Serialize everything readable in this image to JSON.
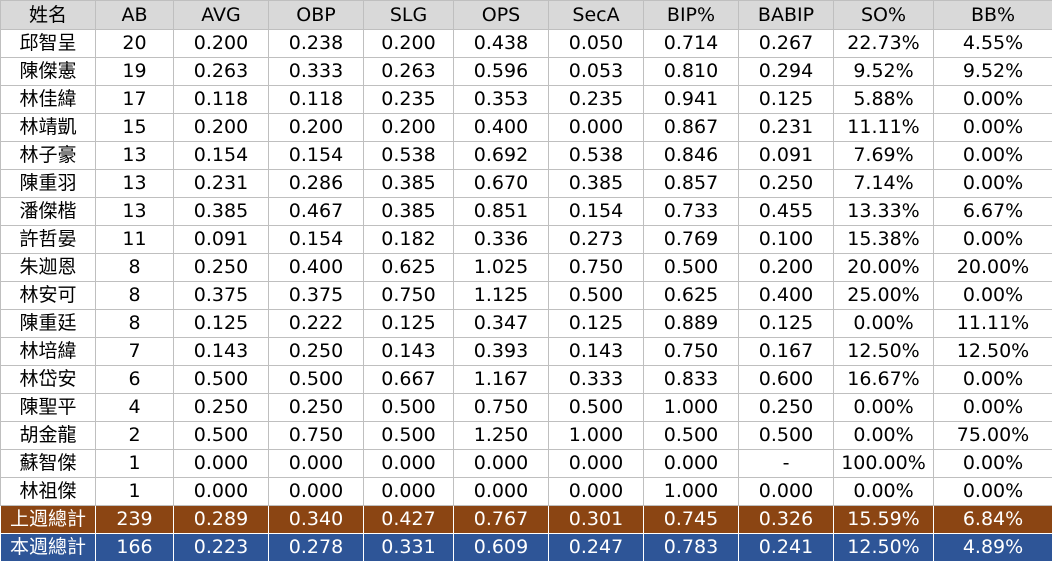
{
  "table": {
    "headers": [
      "姓名",
      "AB",
      "AVG",
      "OBP",
      "SLG",
      "OPS",
      "SecA",
      "BIP%",
      "BABIP",
      "SO%",
      "BB%"
    ],
    "rows": [
      [
        "邱智呈",
        "20",
        "0.200",
        "0.238",
        "0.200",
        "0.438",
        "0.050",
        "0.714",
        "0.267",
        "22.73%",
        "4.55%"
      ],
      [
        "陳傑憲",
        "19",
        "0.263",
        "0.333",
        "0.263",
        "0.596",
        "0.053",
        "0.810",
        "0.294",
        "9.52%",
        "9.52%"
      ],
      [
        "林佳緯",
        "17",
        "0.118",
        "0.118",
        "0.235",
        "0.353",
        "0.235",
        "0.941",
        "0.125",
        "5.88%",
        "0.00%"
      ],
      [
        "林靖凱",
        "15",
        "0.200",
        "0.200",
        "0.200",
        "0.400",
        "0.000",
        "0.867",
        "0.231",
        "11.11%",
        "0.00%"
      ],
      [
        "林子豪",
        "13",
        "0.154",
        "0.154",
        "0.538",
        "0.692",
        "0.538",
        "0.846",
        "0.091",
        "7.69%",
        "0.00%"
      ],
      [
        "陳重羽",
        "13",
        "0.231",
        "0.286",
        "0.385",
        "0.670",
        "0.385",
        "0.857",
        "0.250",
        "7.14%",
        "0.00%"
      ],
      [
        "潘傑楷",
        "13",
        "0.385",
        "0.467",
        "0.385",
        "0.851",
        "0.154",
        "0.733",
        "0.455",
        "13.33%",
        "6.67%"
      ],
      [
        "許哲晏",
        "11",
        "0.091",
        "0.154",
        "0.182",
        "0.336",
        "0.273",
        "0.769",
        "0.100",
        "15.38%",
        "0.00%"
      ],
      [
        "朱迦恩",
        "8",
        "0.250",
        "0.400",
        "0.625",
        "1.025",
        "0.750",
        "0.500",
        "0.200",
        "20.00%",
        "20.00%"
      ],
      [
        "林安可",
        "8",
        "0.375",
        "0.375",
        "0.750",
        "1.125",
        "0.500",
        "0.625",
        "0.400",
        "25.00%",
        "0.00%"
      ],
      [
        "陳重廷",
        "8",
        "0.125",
        "0.222",
        "0.125",
        "0.347",
        "0.125",
        "0.889",
        "0.125",
        "0.00%",
        "11.11%"
      ],
      [
        "林培緯",
        "7",
        "0.143",
        "0.250",
        "0.143",
        "0.393",
        "0.143",
        "0.750",
        "0.167",
        "12.50%",
        "12.50%"
      ],
      [
        "林岱安",
        "6",
        "0.500",
        "0.500",
        "0.667",
        "1.167",
        "0.333",
        "0.833",
        "0.600",
        "16.67%",
        "0.00%"
      ],
      [
        "陳聖平",
        "4",
        "0.250",
        "0.250",
        "0.500",
        "0.750",
        "0.500",
        "1.000",
        "0.250",
        "0.00%",
        "0.00%"
      ],
      [
        "胡金龍",
        "2",
        "0.500",
        "0.750",
        "0.500",
        "1.250",
        "1.000",
        "0.500",
        "0.500",
        "0.00%",
        "75.00%"
      ],
      [
        "蘇智傑",
        "1",
        "0.000",
        "0.000",
        "0.000",
        "0.000",
        "0.000",
        "0.000",
        "-",
        "100.00%",
        "0.00%"
      ],
      [
        "林祖傑",
        "1",
        "0.000",
        "0.000",
        "0.000",
        "0.000",
        "0.000",
        "1.000",
        "0.000",
        "0.00%",
        "0.00%"
      ]
    ],
    "totals": [
      {
        "values": [
          "上週總計",
          "239",
          "0.289",
          "0.340",
          "0.427",
          "0.767",
          "0.301",
          "0.745",
          "0.326",
          "15.59%",
          "6.84%"
        ],
        "color": "#8b4513"
      },
      {
        "values": [
          "本週總計",
          "166",
          "0.223",
          "0.278",
          "0.331",
          "0.609",
          "0.247",
          "0.783",
          "0.241",
          "12.50%",
          "4.89%"
        ],
        "color": "#2e5597"
      }
    ]
  },
  "colors": {
    "header_bg": "#d9d9d9",
    "grid": "#bfbfbf",
    "last_week_total": "#8b4513",
    "this_week_total": "#2e5597"
  }
}
